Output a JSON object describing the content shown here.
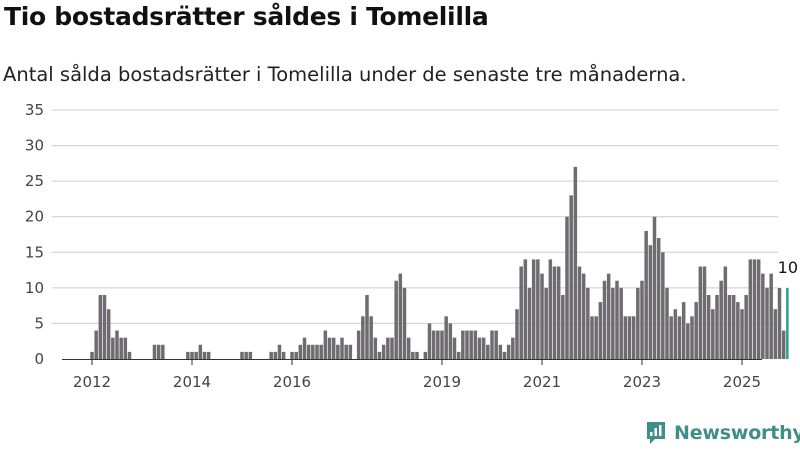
{
  "title": "Tio bostadsrätter såldes i Tomelilla",
  "subtitle": "Antal sålda bostadsrätter i Tomelilla under de senaste tre månaderna.",
  "brand": {
    "name": "Newsworthy",
    "color": "#3f8f88"
  },
  "colors": {
    "bar": "#6e6c70",
    "highlight": "#2a9d8f",
    "grid": "#cccccc"
  },
  "chart_data": {
    "type": "bar",
    "x_start": "2012-01",
    "x_end": "2025-01",
    "x_ticks": [
      "2012",
      "2014",
      "2016",
      "2019",
      "2021",
      "2023",
      "2025"
    ],
    "y_ticks": [
      0,
      5,
      10,
      15,
      20,
      25,
      30,
      35
    ],
    "ylim": [
      0,
      35
    ],
    "grid": true,
    "highlight_label": "10",
    "values": [
      1,
      4,
      9,
      9,
      7,
      3,
      4,
      3,
      3,
      1,
      0,
      0,
      0,
      0,
      0,
      2,
      2,
      2,
      0,
      0,
      0,
      0,
      0,
      1,
      1,
      1,
      2,
      1,
      1,
      0,
      0,
      0,
      0,
      0,
      0,
      0,
      1,
      1,
      1,
      0,
      0,
      0,
      0,
      1,
      1,
      2,
      1,
      0,
      1,
      1,
      2,
      3,
      2,
      2,
      2,
      2,
      4,
      3,
      3,
      2,
      3,
      2,
      2,
      0,
      4,
      6,
      9,
      6,
      3,
      1,
      2,
      3,
      3,
      11,
      12,
      10,
      3,
      1,
      1,
      0,
      1,
      5,
      4,
      4,
      4,
      6,
      5,
      3,
      1,
      4,
      4,
      4,
      4,
      3,
      3,
      2,
      4,
      4,
      2,
      1,
      2,
      3,
      7,
      13,
      14,
      10,
      14,
      14,
      12,
      10,
      14,
      13,
      13,
      9,
      20,
      23,
      27,
      13,
      12,
      10,
      6,
      6,
      8,
      11,
      12,
      10,
      11,
      10,
      6,
      6,
      6,
      10,
      11,
      18,
      16,
      20,
      17,
      15,
      10,
      6,
      7,
      6,
      8,
      5,
      6,
      8,
      13,
      13,
      9,
      7,
      9,
      11,
      13,
      9,
      9,
      8,
      7,
      9,
      14,
      14,
      14,
      12,
      10,
      12,
      7,
      10,
      4,
      10
    ]
  }
}
